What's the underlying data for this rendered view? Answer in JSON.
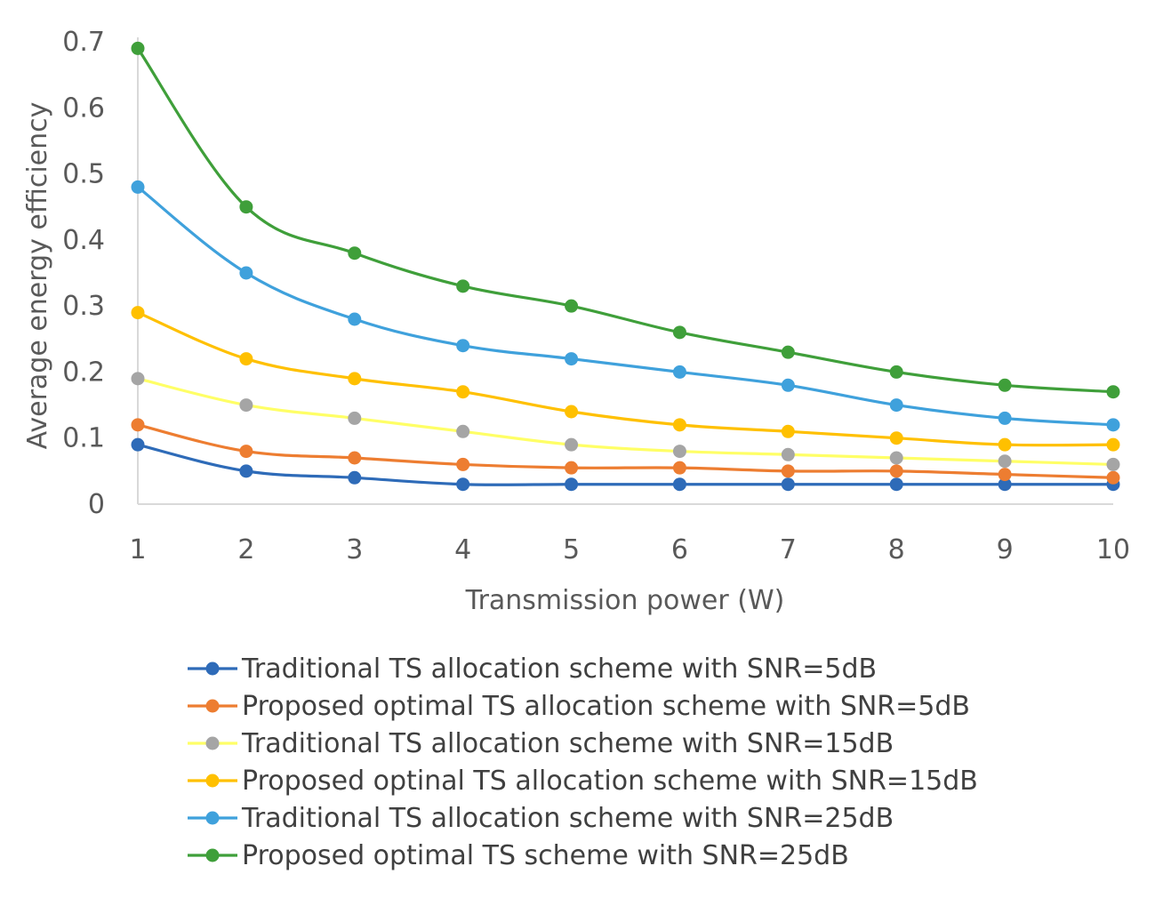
{
  "chart_data": {
    "type": "line",
    "title": "",
    "xlabel": "Transmission power (W)",
    "ylabel": "Average energy efficiency",
    "x": [
      1,
      2,
      3,
      4,
      5,
      6,
      7,
      8,
      9,
      10
    ],
    "x_tick_labels": [
      "1",
      "2",
      "3",
      "4",
      "5",
      "6",
      "7",
      "8",
      "9",
      "10"
    ],
    "y_tick_labels": [
      "0",
      "0.1",
      "0.2",
      "0.3",
      "0.4",
      "0.5",
      "0.6",
      "0.7"
    ],
    "ylim": [
      0,
      0.7
    ],
    "grid": false,
    "legend_position": "bottom",
    "series": [
      {
        "name": "Traditional TS allocation scheme with SNR=5dB",
        "color": "#2e6bb8",
        "values": [
          0.09,
          0.05,
          0.04,
          0.03,
          0.03,
          0.03,
          0.03,
          0.03,
          0.03,
          0.03
        ]
      },
      {
        "name": "Proposed optimal TS allocation scheme with SNR=5dB",
        "color": "#ed7d31",
        "values": [
          0.12,
          0.08,
          0.07,
          0.06,
          0.055,
          0.055,
          0.05,
          0.05,
          0.045,
          0.04
        ]
      },
      {
        "name": "Traditional TS allocation scheme with SNR=15dB",
        "color": "#ffff66",
        "marker_color": "#a5a5a5",
        "values": [
          0.19,
          0.15,
          0.13,
          0.11,
          0.09,
          0.08,
          0.075,
          0.07,
          0.065,
          0.06
        ]
      },
      {
        "name": "Proposed optinal TS allocation scheme with SNR=15dB",
        "color": "#ffc000",
        "values": [
          0.29,
          0.22,
          0.19,
          0.17,
          0.14,
          0.12,
          0.11,
          0.1,
          0.09,
          0.09
        ]
      },
      {
        "name": "Traditional TS allocation scheme with SNR=25dB",
        "color": "#3fa1dc",
        "values": [
          0.48,
          0.35,
          0.28,
          0.24,
          0.22,
          0.2,
          0.18,
          0.15,
          0.13,
          0.12
        ]
      },
      {
        "name": "Proposed optimal TS scheme with SNR=25dB",
        "color": "#3f9f3a",
        "values": [
          0.69,
          0.45,
          0.38,
          0.33,
          0.3,
          0.26,
          0.23,
          0.2,
          0.18,
          0.17
        ]
      }
    ]
  }
}
